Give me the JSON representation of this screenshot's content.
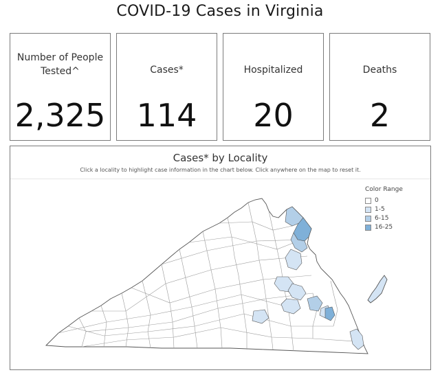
{
  "page_title": "COVID-19 Cases in Virginia",
  "cards": [
    {
      "label_line1": "Number of People",
      "label_line2": "Tested^",
      "value": "2,325"
    },
    {
      "label_line1": "Cases*",
      "value": "114"
    },
    {
      "label_line1": "Hospitalized",
      "value": "20"
    },
    {
      "label_line1": "Deaths",
      "value": "2"
    }
  ],
  "map": {
    "title": "Cases* by Locality",
    "subtitle": "Click a locality to highlight case information in the chart below.  Click anywhere on the map to reset it.",
    "legend": {
      "title": "Color Range",
      "items": [
        {
          "label": "0",
          "color": "#ffffff"
        },
        {
          "label": "1-5",
          "color": "#d4e4f4"
        },
        {
          "label": "6-15",
          "color": "#b3cfe8"
        },
        {
          "label": "16-25",
          "color": "#7fb0d8"
        }
      ]
    },
    "colors": {
      "outline": "#555555",
      "inner_line": "#9a9a9a"
    }
  }
}
